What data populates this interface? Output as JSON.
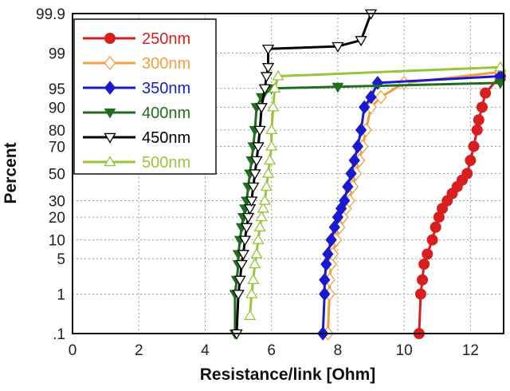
{
  "chart_data": {
    "type": "line",
    "title": "",
    "xlabel": "Resistance/link [Ohm]",
    "ylabel": "Percent",
    "xlim": [
      0,
      13
    ],
    "xticks": [
      0,
      2,
      4,
      6,
      8,
      10,
      12
    ],
    "ylim": [
      0.1,
      99.9
    ],
    "yscale": "probability",
    "yticks": [
      {
        "value": 0.1,
        "label": ".1"
      },
      {
        "value": 1,
        "label": "1"
      },
      {
        "value": 5,
        "label": "5"
      },
      {
        "value": 10,
        "label": "10"
      },
      {
        "value": 20,
        "label": "20"
      },
      {
        "value": 30,
        "label": "30"
      },
      {
        "value": 50,
        "label": "50"
      },
      {
        "value": 70,
        "label": "70"
      },
      {
        "value": 80,
        "label": "80"
      },
      {
        "value": 90,
        "label": "90"
      },
      {
        "value": 95,
        "label": "95"
      },
      {
        "value": 99,
        "label": "99"
      },
      {
        "value": 99.9,
        "label": "99.9"
      }
    ],
    "grid": true,
    "legend_position": "top-left",
    "series": [
      {
        "name": "250nm",
        "color": "#d81e1e",
        "marker": "circle-filled",
        "x": [
          10.45,
          10.5,
          10.55,
          10.6,
          10.7,
          10.85,
          10.95,
          11.05,
          11.15,
          11.3,
          11.45,
          11.6,
          11.75,
          11.9,
          12.0,
          12.1,
          12.2,
          12.25,
          12.35,
          12.45,
          12.9
        ],
        "y": [
          0.1,
          1,
          2,
          4,
          6,
          10,
          15,
          20,
          25,
          30,
          35,
          40,
          45,
          50,
          60,
          70,
          80,
          85,
          90,
          94,
          97
        ]
      },
      {
        "name": "300nm",
        "color": "#f0a040",
        "marker": "diamond-open",
        "x": [
          7.7,
          7.75,
          7.75,
          7.8,
          7.85,
          7.95,
          8.05,
          8.15,
          8.25,
          8.35,
          8.45,
          8.55,
          8.65,
          8.75,
          8.85,
          9.0,
          9.3,
          10.0,
          12.9
        ],
        "y": [
          0.1,
          1,
          2,
          4,
          6,
          10,
          15,
          20,
          25,
          30,
          40,
          50,
          60,
          70,
          80,
          90,
          93,
          96,
          97.5
        ]
      },
      {
        "name": "350nm",
        "color": "#1a1acc",
        "marker": "diamond-filled",
        "x": [
          7.55,
          7.6,
          7.6,
          7.65,
          7.7,
          7.8,
          7.9,
          8.0,
          8.1,
          8.2,
          8.3,
          8.4,
          8.5,
          8.6,
          8.7,
          8.8,
          9.0,
          9.2,
          12.9
        ],
        "y": [
          0.1,
          1,
          2,
          4,
          6,
          10,
          15,
          20,
          25,
          30,
          40,
          50,
          60,
          70,
          80,
          90,
          93,
          96,
          97
        ]
      },
      {
        "name": "400nm",
        "color": "#1e6e1e",
        "marker": "triangle-down-filled",
        "x": [
          4.9,
          4.9,
          4.95,
          5.0,
          5.0,
          5.05,
          5.1,
          5.15,
          5.2,
          5.25,
          5.3,
          5.35,
          5.4,
          5.45,
          5.5,
          5.55,
          5.7,
          6.0,
          8.0,
          12.9
        ],
        "y": [
          0.1,
          1,
          2,
          4,
          6,
          10,
          15,
          20,
          25,
          30,
          40,
          50,
          60,
          70,
          80,
          90,
          93,
          95,
          95.3,
          96
        ]
      },
      {
        "name": "450nm",
        "color": "#000000",
        "marker": "triangle-down-open",
        "x": [
          4.95,
          5.0,
          5.05,
          5.1,
          5.15,
          5.2,
          5.25,
          5.3,
          5.35,
          5.4,
          5.45,
          5.5,
          5.55,
          5.6,
          5.65,
          5.7,
          5.8,
          5.85,
          5.9,
          5.9,
          8.0,
          8.7,
          9.0
        ],
        "y": [
          0.1,
          1,
          2,
          4,
          6,
          10,
          15,
          20,
          25,
          30,
          40,
          50,
          60,
          70,
          80,
          90,
          95,
          97,
          98,
          99.2,
          99.3,
          99.5,
          99.9
        ]
      },
      {
        "name": "500nm",
        "color": "#9ac43a",
        "marker": "triangle-up-open",
        "x": [
          5.35,
          5.4,
          5.45,
          5.5,
          5.55,
          5.6,
          5.65,
          5.7,
          5.75,
          5.8,
          5.85,
          5.9,
          5.95,
          6.0,
          6.0,
          6.05,
          6.1,
          6.2,
          12.9
        ],
        "y": [
          0.3,
          1,
          2,
          4,
          6,
          10,
          15,
          20,
          25,
          30,
          40,
          50,
          60,
          70,
          80,
          90,
          95,
          97,
          98
        ]
      }
    ]
  }
}
